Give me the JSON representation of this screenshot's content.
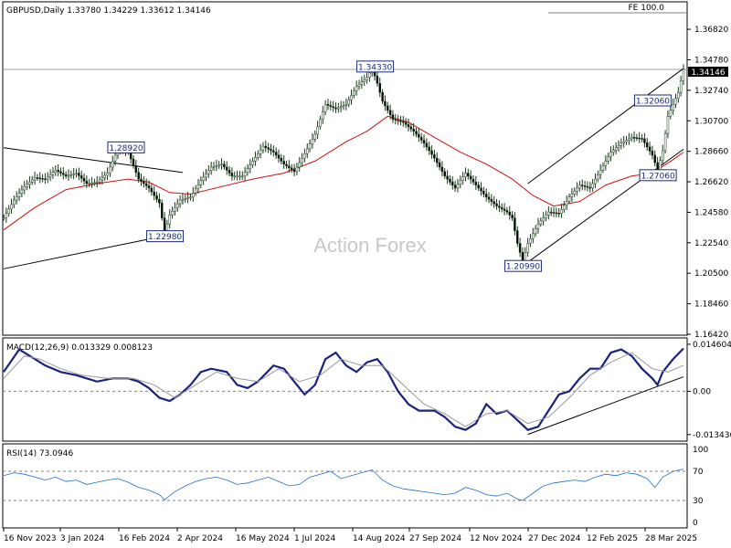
{
  "header": {
    "symbol_line": "GBPUSD,Daily  1.33780 1.34229 1.33612 1.34146",
    "fe_label": "FE 100.0",
    "watermark": "Action Forex",
    "current_price": "1.34146"
  },
  "chart_data": [
    {
      "type": "candlestick",
      "title": "GBPUSD,Daily",
      "ohlc_last": {
        "open": 1.3378,
        "high": 1.34229,
        "low": 1.33612,
        "close": 1.34146
      },
      "ylim": [
        1.1642,
        1.3768
      ],
      "ytick_labels": [
        "1.36820",
        "1.34780",
        "1.32740",
        "1.30700",
        "1.28660",
        "1.26620",
        "1.24580",
        "1.22540",
        "1.20500",
        "1.18460",
        "1.16420"
      ],
      "xtick_labels": [
        "16 Nov 2023",
        "3 Jan 2024",
        "16 Feb 2024",
        "2 Apr 2024",
        "16 May 2024",
        "1 Jul 2024",
        "14 Aug 2024",
        "27 Sep 2024",
        "12 Nov 2024",
        "27 Dec 2024",
        "12 Feb 2025",
        "28 Mar 2025"
      ],
      "close_path": [
        [
          0,
          1.242
        ],
        [
          4,
          1.254
        ],
        [
          8,
          1.263
        ],
        [
          12,
          1.269
        ],
        [
          16,
          1.268
        ],
        [
          20,
          1.274
        ],
        [
          24,
          1.27
        ],
        [
          28,
          1.272
        ],
        [
          32,
          1.265
        ],
        [
          36,
          1.266
        ],
        [
          40,
          1.272
        ],
        [
          44,
          1.288
        ],
        [
          48,
          1.286
        ],
        [
          52,
          1.268
        ],
        [
          56,
          1.262
        ],
        [
          60,
          1.252
        ],
        [
          62,
          1.232
        ],
        [
          64,
          1.244
        ],
        [
          68,
          1.254
        ],
        [
          72,
          1.256
        ],
        [
          76,
          1.267
        ],
        [
          80,
          1.276
        ],
        [
          84,
          1.278
        ],
        [
          88,
          1.27
        ],
        [
          92,
          1.27
        ],
        [
          96,
          1.28
        ],
        [
          100,
          1.29
        ],
        [
          104,
          1.286
        ],
        [
          108,
          1.278
        ],
        [
          112,
          1.273
        ],
        [
          116,
          1.285
        ],
        [
          120,
          1.298
        ],
        [
          124,
          1.318
        ],
        [
          128,
          1.315
        ],
        [
          132,
          1.318
        ],
        [
          136,
          1.33
        ],
        [
          140,
          1.336
        ],
        [
          142,
          1.342
        ],
        [
          144,
          1.332
        ],
        [
          146,
          1.32
        ],
        [
          150,
          1.308
        ],
        [
          154,
          1.306
        ],
        [
          158,
          1.3
        ],
        [
          162,
          1.292
        ],
        [
          166,
          1.282
        ],
        [
          170,
          1.27
        ],
        [
          174,
          1.262
        ],
        [
          178,
          1.272
        ],
        [
          182,
          1.264
        ],
        [
          186,
          1.256
        ],
        [
          190,
          1.25
        ],
        [
          194,
          1.246
        ],
        [
          196,
          1.242
        ],
        [
          198,
          1.225
        ],
        [
          200,
          1.213
        ],
        [
          202,
          1.225
        ],
        [
          206,
          1.238
        ],
        [
          210,
          1.246
        ],
        [
          214,
          1.245
        ],
        [
          218,
          1.256
        ],
        [
          222,
          1.264
        ],
        [
          226,
          1.262
        ],
        [
          230,
          1.274
        ],
        [
          234,
          1.286
        ],
        [
          238,
          1.292
        ],
        [
          242,
          1.296
        ],
        [
          246,
          1.295
        ],
        [
          250,
          1.284
        ],
        [
          252,
          1.274
        ],
        [
          254,
          1.287
        ],
        [
          256,
          1.31
        ],
        [
          258,
          1.318
        ],
        [
          260,
          1.326
        ],
        [
          262,
          1.3414
        ]
      ],
      "sma_path": [
        [
          0,
          1.234
        ],
        [
          12,
          1.249
        ],
        [
          24,
          1.261
        ],
        [
          36,
          1.265
        ],
        [
          48,
          1.268
        ],
        [
          56,
          1.266
        ],
        [
          64,
          1.259
        ],
        [
          72,
          1.258
        ],
        [
          84,
          1.263
        ],
        [
          96,
          1.268
        ],
        [
          108,
          1.272
        ],
        [
          120,
          1.28
        ],
        [
          132,
          1.293
        ],
        [
          140,
          1.3
        ],
        [
          148,
          1.31
        ],
        [
          156,
          1.306
        ],
        [
          166,
          1.296
        ],
        [
          176,
          1.286
        ],
        [
          186,
          1.278
        ],
        [
          196,
          1.268
        ],
        [
          204,
          1.257
        ],
        [
          212,
          1.25
        ],
        [
          222,
          1.253
        ],
        [
          232,
          1.264
        ],
        [
          242,
          1.27
        ],
        [
          250,
          1.272
        ],
        [
          258,
          1.281
        ],
        [
          262,
          1.286
        ]
      ],
      "annotations": [
        {
          "label": "1.28920",
          "value": 1.2892,
          "x": 47
        },
        {
          "label": "1.22980",
          "value": 1.2298,
          "x": 62
        },
        {
          "label": "1.34330",
          "value": 1.3433,
          "x": 143
        },
        {
          "label": "1.20990",
          "value": 1.2099,
          "x": 200
        },
        {
          "label": "1.32060",
          "value": 1.3206,
          "x": 250
        },
        {
          "label": "1.27060",
          "value": 1.2706,
          "x": 252
        }
      ],
      "trendlines": [
        {
          "from": [
            0,
            1.289
          ],
          "to": [
            69,
            1.2724
          ]
        },
        {
          "from": [
            0,
            1.208
          ],
          "to": [
            69,
            1.2325
          ]
        },
        {
          "from": [
            200,
            1.2099
          ],
          "to": [
            262,
            1.288
          ]
        },
        {
          "from": [
            202,
            1.265
          ],
          "to": [
            262,
            1.342
          ]
        }
      ],
      "fe_level": 1.3414
    },
    {
      "type": "line",
      "title": "MACD(12,26,9) 0.013329 0.008123",
      "ytick_labels": [
        "0.014604",
        "0.00",
        "-0.013436"
      ],
      "ylim": [
        -0.0152,
        0.016
      ],
      "series": [
        {
          "name": "MACD",
          "points": [
            [
              0,
              0.006
            ],
            [
              6,
              0.013
            ],
            [
              10,
              0.011
            ],
            [
              16,
              0.008
            ],
            [
              22,
              0.006
            ],
            [
              28,
              0.005
            ],
            [
              32,
              0.004
            ],
            [
              36,
              0.003
            ],
            [
              42,
              0.004
            ],
            [
              48,
              0.004
            ],
            [
              52,
              0.003
            ],
            [
              56,
              0.001
            ],
            [
              60,
              -0.002
            ],
            [
              64,
              -0.003
            ],
            [
              68,
              -0.001
            ],
            [
              72,
              0.002
            ],
            [
              76,
              0.006
            ],
            [
              80,
              0.007
            ],
            [
              86,
              0.006
            ],
            [
              90,
              0.002
            ],
            [
              94,
              0.001
            ],
            [
              98,
              0.003
            ],
            [
              104,
              0.008
            ],
            [
              108,
              0.007
            ],
            [
              112,
              0.003
            ],
            [
              116,
              -0.001
            ],
            [
              120,
              0.002
            ],
            [
              124,
              0.01
            ],
            [
              128,
              0.012
            ],
            [
              132,
              0.008
            ],
            [
              136,
              0.006
            ],
            [
              140,
              0.009
            ],
            [
              144,
              0.01
            ],
            [
              148,
              0.006
            ],
            [
              152,
              0.0
            ],
            [
              156,
              -0.004
            ],
            [
              160,
              -0.006
            ],
            [
              166,
              -0.006
            ],
            [
              170,
              -0.008
            ],
            [
              174,
              -0.011
            ],
            [
              178,
              -0.012
            ],
            [
              182,
              -0.01
            ],
            [
              186,
              -0.004
            ],
            [
              190,
              -0.007
            ],
            [
              194,
              -0.006
            ],
            [
              198,
              -0.009
            ],
            [
              202,
              -0.012
            ],
            [
              206,
              -0.011
            ],
            [
              210,
              -0.006
            ],
            [
              214,
              -0.001
            ],
            [
              218,
              0.0
            ],
            [
              222,
              0.004
            ],
            [
              226,
              0.007
            ],
            [
              230,
              0.007
            ],
            [
              234,
              0.012
            ],
            [
              238,
              0.013
            ],
            [
              242,
              0.011
            ],
            [
              246,
              0.007
            ],
            [
              250,
              0.004
            ],
            [
              252,
              0.002
            ],
            [
              254,
              0.006
            ],
            [
              258,
              0.01
            ],
            [
              262,
              0.0133
            ]
          ]
        },
        {
          "name": "Signal",
          "points": [
            [
              0,
              0.004
            ],
            [
              8,
              0.011
            ],
            [
              14,
              0.01
            ],
            [
              22,
              0.007
            ],
            [
              30,
              0.005
            ],
            [
              40,
              0.004
            ],
            [
              50,
              0.004
            ],
            [
              58,
              0.002
            ],
            [
              66,
              -0.002
            ],
            [
              74,
              0.002
            ],
            [
              82,
              0.006
            ],
            [
              90,
              0.004
            ],
            [
              98,
              0.003
            ],
            [
              106,
              0.007
            ],
            [
              114,
              0.003
            ],
            [
              122,
              0.005
            ],
            [
              130,
              0.01
            ],
            [
              138,
              0.008
            ],
            [
              146,
              0.008
            ],
            [
              154,
              0.002
            ],
            [
              162,
              -0.004
            ],
            [
              170,
              -0.007
            ],
            [
              178,
              -0.011
            ],
            [
              186,
              -0.007
            ],
            [
              194,
              -0.006
            ],
            [
              202,
              -0.01
            ],
            [
              210,
              -0.008
            ],
            [
              218,
              -0.002
            ],
            [
              226,
              0.005
            ],
            [
              234,
              0.009
            ],
            [
              242,
              0.012
            ],
            [
              250,
              0.007
            ],
            [
              256,
              0.006
            ],
            [
              262,
              0.0081
            ]
          ]
        }
      ],
      "trendline": {
        "from": [
          202,
          -0.0134
        ],
        "to": [
          262,
          0.0045
        ]
      }
    },
    {
      "type": "line",
      "title": "RSI(14) 73.0946",
      "ytick_labels": [
        "100",
        "70",
        "30",
        "0"
      ],
      "ylim": [
        0,
        100
      ],
      "levels": [
        70,
        30
      ],
      "series": [
        {
          "name": "RSI",
          "points": [
            [
              0,
              64
            ],
            [
              4,
              68
            ],
            [
              8,
              66
            ],
            [
              12,
              62
            ],
            [
              16,
              58
            ],
            [
              20,
              62
            ],
            [
              24,
              56
            ],
            [
              28,
              58
            ],
            [
              32,
              52
            ],
            [
              36,
              55
            ],
            [
              40,
              58
            ],
            [
              44,
              60
            ],
            [
              48,
              55
            ],
            [
              52,
              48
            ],
            [
              56,
              44
            ],
            [
              60,
              38
            ],
            [
              62,
              31
            ],
            [
              66,
              42
            ],
            [
              70,
              50
            ],
            [
              74,
              56
            ],
            [
              78,
              60
            ],
            [
              82,
              62
            ],
            [
              86,
              58
            ],
            [
              90,
              52
            ],
            [
              94,
              54
            ],
            [
              98,
              58
            ],
            [
              102,
              62
            ],
            [
              106,
              56
            ],
            [
              110,
              50
            ],
            [
              114,
              52
            ],
            [
              118,
              62
            ],
            [
              122,
              66
            ],
            [
              126,
              70
            ],
            [
              130,
              60
            ],
            [
              134,
              64
            ],
            [
              138,
              68
            ],
            [
              142,
              72
            ],
            [
              146,
              58
            ],
            [
              150,
              50
            ],
            [
              154,
              46
            ],
            [
              158,
              44
            ],
            [
              162,
              42
            ],
            [
              166,
              40
            ],
            [
              170,
              38
            ],
            [
              174,
              40
            ],
            [
              178,
              48
            ],
            [
              182,
              44
            ],
            [
              186,
              38
            ],
            [
              190,
              36
            ],
            [
              194,
              40
            ],
            [
              198,
              32
            ],
            [
              200,
              30
            ],
            [
              204,
              40
            ],
            [
              208,
              50
            ],
            [
              212,
              54
            ],
            [
              216,
              56
            ],
            [
              220,
              58
            ],
            [
              224,
              56
            ],
            [
              228,
              62
            ],
            [
              232,
              66
            ],
            [
              236,
              64
            ],
            [
              240,
              68
            ],
            [
              244,
              66
            ],
            [
              248,
              60
            ],
            [
              251,
              48
            ],
            [
              254,
              62
            ],
            [
              258,
              70
            ],
            [
              262,
              73
            ]
          ]
        }
      ]
    }
  ]
}
